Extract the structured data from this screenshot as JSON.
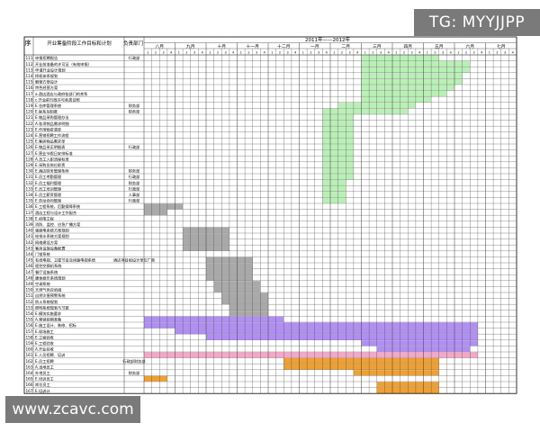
{
  "header": {
    "seq_label": "序",
    "task_label": "开业筹备阶段工作目标和计划",
    "owner_label": "负责部门",
    "period_label": "2011年——2012年"
  },
  "months": [
    "八月",
    "九月",
    "十月",
    "十一月",
    "十二月",
    "一月",
    "二月",
    "三月",
    "四月",
    "五月",
    "六月",
    "七月"
  ],
  "week_labels": [
    "1",
    "2",
    "3",
    "4"
  ],
  "tasks": [
    {
      "n": "111",
      "t": "申报招聘报告"
    },
    {
      "n": "112",
      "t": "开业前准备的许可证（有效申报）"
    },
    {
      "n": "113",
      "t": "申请开业设计规划"
    },
    {
      "n": "114",
      "t": "授权体系规划"
    },
    {
      "n": "115",
      "t": "朝营方案设计"
    },
    {
      "n": "116",
      "t": "特色经营方案"
    },
    {
      "n": "117",
      "t": "a.酒店酒店与政府各部门的关系"
    },
    {
      "n": "118",
      "t": "c.开业前行政许可各类证照"
    },
    {
      "n": "119",
      "t": "E.仓库管理系统"
    },
    {
      "n": "120",
      "t": "E.联系及制度"
    },
    {
      "n": "121",
      "t": "E.物品采购管理办法"
    },
    {
      "n": "122",
      "t": "A.各项物品需求明细"
    },
    {
      "n": "123",
      "t": "E.作用物资清单"
    },
    {
      "n": "124",
      "t": "E.营销招聘工作流程"
    },
    {
      "n": "125",
      "t": "E.客房物品需求单"
    },
    {
      "n": "126",
      "t": "E.物品采买明细表"
    },
    {
      "n": "127",
      "t": "E.营业节假日安排标准"
    },
    {
      "n": "128",
      "t": "A.员工入职流程标准"
    },
    {
      "n": "129",
      "t": "E.采购员岗位职责"
    },
    {
      "n": "130",
      "t": "E.酒店财务管理条例"
    },
    {
      "n": "131",
      "t": "E.员工考勤管理"
    },
    {
      "n": "132",
      "t": "E.员工福利管理"
    },
    {
      "n": "133",
      "t": "E.员工培训管理"
    },
    {
      "n": "134",
      "t": "E.员工薪资管理"
    },
    {
      "n": "135",
      "t": "E.劳动合同管理"
    },
    {
      "n": "136",
      "t": "E.工程系统，后勤保障系统"
    },
    {
      "n": "137",
      "t": "酒店工程与设计工作配合"
    },
    {
      "n": "138",
      "t": "E.机电工程"
    },
    {
      "n": "139",
      "t": "消防、监控、应急广播方案"
    },
    {
      "n": "140",
      "t": "强弱电系统方案规划"
    },
    {
      "n": "141",
      "t": "给排水系统方案规划"
    },
    {
      "n": "142",
      "t": "网络建设方案"
    },
    {
      "n": "143",
      "t": "客房设施设备配置"
    },
    {
      "n": "144",
      "t": "门锁系统"
    },
    {
      "n": "145",
      "t": "有线电视、卫星节目及闭路电视系统"
    },
    {
      "n": "146",
      "t": "程控交换机系统"
    },
    {
      "n": "147",
      "t": "餐厅设施系统"
    },
    {
      "n": "148",
      "t": "康体娱乐系统规划"
    },
    {
      "n": "149",
      "t": "空调系统"
    },
    {
      "n": "150",
      "t": "天然气供应机组"
    },
    {
      "n": "151",
      "t": "自然灾害预警系统"
    },
    {
      "n": "152",
      "t": "防火系统规划"
    },
    {
      "n": "153",
      "t": "照明系统规划与节能"
    },
    {
      "n": "154",
      "t": "E.模块实施要求"
    },
    {
      "n": "155",
      "t": "A.营销前期准备"
    },
    {
      "n": "156",
      "t": "E.施工设计、装修、招标"
    },
    {
      "n": "157",
      "t": "E.现场施工"
    },
    {
      "n": "158",
      "t": "E.工程验收"
    },
    {
      "n": "159",
      "t": "E.工程验收"
    },
    {
      "n": "160",
      "t": "A.开业验收"
    },
    {
      "n": "161",
      "t": "E.人员招聘、培训"
    },
    {
      "n": "162",
      "t": "E.员工招聘"
    },
    {
      "n": "163",
      "t": "A.当地员工"
    },
    {
      "n": "164",
      "t": "外地员工"
    },
    {
      "n": "165",
      "t": "E.培训员工"
    },
    {
      "n": "166",
      "t": "岗位员工"
    },
    {
      "n": "167",
      "t": "E.培训计"
    }
  ],
  "owners": [
    {
      "label": "行政部",
      "row": 0
    },
    {
      "label": "财务部",
      "row": 8
    },
    {
      "label": "财务部",
      "row": 9
    },
    {
      "label": "行政部",
      "row": 15
    },
    {
      "label": "财务部",
      "row": 19
    },
    {
      "label": "行政部",
      "row": 20
    },
    {
      "label": "财务部",
      "row": 21
    },
    {
      "label": "行政部",
      "row": 22
    },
    {
      "label": "人事部",
      "row": 23
    },
    {
      "label": "行政部",
      "row": 24
    },
    {
      "label": "酒店项目组设计单位厂商",
      "row": 34
    },
    {
      "label": "行政部财务部",
      "row": 51
    },
    {
      "label": "财务部",
      "row": 53
    },
    {
      "label": "人事部",
      "row": 60
    }
  ],
  "bars": [
    {
      "row": 0,
      "from": 28,
      "to": 38,
      "color": "#b9f0b5"
    },
    {
      "row": 1,
      "from": 28,
      "to": 42,
      "color": "#b9f0b5"
    },
    {
      "row": 2,
      "from": 28,
      "to": 42,
      "color": "#b9f0b5"
    },
    {
      "row": 3,
      "from": 28,
      "to": 41,
      "color": "#b9f0b5"
    },
    {
      "row": 4,
      "from": 28,
      "to": 41,
      "color": "#b9f0b5"
    },
    {
      "row": 5,
      "from": 28,
      "to": 40,
      "color": "#b9f0b5"
    },
    {
      "row": 6,
      "from": 28,
      "to": 39,
      "color": "#b9f0b5"
    },
    {
      "row": 7,
      "from": 28,
      "to": 37,
      "color": "#b9f0b5"
    },
    {
      "row": 8,
      "from": 25,
      "to": 35,
      "color": "#b9f0b5"
    },
    {
      "row": 9,
      "from": 23,
      "to": 34,
      "color": "#b9f0b5"
    },
    {
      "row": 10,
      "from": 23,
      "to": 27,
      "color": "#b9f0b5"
    },
    {
      "row": 11,
      "from": 23,
      "to": 27,
      "color": "#b9f0b5"
    },
    {
      "row": 12,
      "from": 23,
      "to": 27,
      "color": "#b9f0b5"
    },
    {
      "row": 13,
      "from": 23,
      "to": 27,
      "color": "#b9f0b5"
    },
    {
      "row": 14,
      "from": 23,
      "to": 27,
      "color": "#b9f0b5"
    },
    {
      "row": 15,
      "from": 23,
      "to": 27,
      "color": "#b9f0b5"
    },
    {
      "row": 16,
      "from": 23,
      "to": 27,
      "color": "#b9f0b5"
    },
    {
      "row": 17,
      "from": 23,
      "to": 27,
      "color": "#b9f0b5"
    },
    {
      "row": 18,
      "from": 23,
      "to": 27,
      "color": "#b9f0b5"
    },
    {
      "row": 19,
      "from": 23,
      "to": 27,
      "color": "#b9f0b5"
    },
    {
      "row": 20,
      "from": 23,
      "to": 27,
      "color": "#b9f0b5"
    },
    {
      "row": 21,
      "from": 23,
      "to": 26,
      "color": "#b9f0b5"
    },
    {
      "row": 22,
      "from": 23,
      "to": 26,
      "color": "#b9f0b5"
    },
    {
      "row": 23,
      "from": 23,
      "to": 26,
      "color": "#b9f0b5"
    },
    {
      "row": 24,
      "from": 23,
      "to": 26,
      "color": "#b9f0b5"
    },
    {
      "row": 25,
      "from": 0,
      "to": 5,
      "color": "#a9a9a9"
    },
    {
      "row": 26,
      "from": 0,
      "to": 3,
      "color": "#a9a9a9"
    },
    {
      "row": 29,
      "from": 5,
      "to": 11,
      "color": "#a9a9a9"
    },
    {
      "row": 30,
      "from": 5,
      "to": 11,
      "color": "#a9a9a9"
    },
    {
      "row": 31,
      "from": 5,
      "to": 11,
      "color": "#a9a9a9"
    },
    {
      "row": 32,
      "from": 5,
      "to": 11,
      "color": "#a9a9a9"
    },
    {
      "row": 34,
      "from": 8,
      "to": 14,
      "color": "#a9a9a9"
    },
    {
      "row": 35,
      "from": 8,
      "to": 14,
      "color": "#a9a9a9"
    },
    {
      "row": 36,
      "from": 8,
      "to": 14,
      "color": "#a9a9a9"
    },
    {
      "row": 37,
      "from": 8,
      "to": 14,
      "color": "#a9a9a9"
    },
    {
      "row": 38,
      "from": 9,
      "to": 15,
      "color": "#a9a9a9"
    },
    {
      "row": 39,
      "from": 9,
      "to": 15,
      "color": "#a9a9a9"
    },
    {
      "row": 40,
      "from": 10,
      "to": 16,
      "color": "#a9a9a9"
    },
    {
      "row": 41,
      "from": 10,
      "to": 16,
      "color": "#a9a9a9"
    },
    {
      "row": 42,
      "from": 11,
      "to": 16,
      "color": "#a9a9a9"
    },
    {
      "row": 43,
      "from": 11,
      "to": 16,
      "color": "#a9a9a9"
    },
    {
      "row": 44,
      "from": 0,
      "to": 18,
      "color": "#b18ef5"
    },
    {
      "row": 45,
      "from": 0,
      "to": 43,
      "color": "#b18ef5"
    },
    {
      "row": 46,
      "from": 4,
      "to": 43,
      "color": "#b18ef5"
    },
    {
      "row": 47,
      "from": 8,
      "to": 43,
      "color": "#b18ef5"
    },
    {
      "row": 48,
      "from": 28,
      "to": 43,
      "color": "#b18ef5"
    },
    {
      "row": 49,
      "from": 30,
      "to": 42,
      "color": "#b18ef5"
    },
    {
      "row": 50,
      "from": 0,
      "to": 43,
      "color": "#f6a7c9"
    },
    {
      "row": 51,
      "from": 18,
      "to": 38,
      "color": "#f0a030"
    },
    {
      "row": 52,
      "from": 18,
      "to": 38,
      "color": "#f0a030"
    },
    {
      "row": 53,
      "from": 27,
      "to": 38,
      "color": "#f0a030"
    },
    {
      "row": 54,
      "from": 0,
      "to": 3,
      "color": "#f0a030"
    },
    {
      "row": 55,
      "from": 30,
      "to": 38,
      "color": "#f0a030"
    },
    {
      "row": 56,
      "from": 30,
      "to": 38,
      "color": "#f0a030"
    }
  ],
  "watermarks": {
    "top": "TG: MYYJJPP",
    "bottom": "www.zcavc.com"
  }
}
